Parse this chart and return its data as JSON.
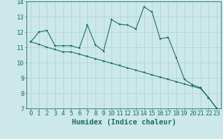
{
  "xlabel": "Humidex (Indice chaleur)",
  "bg_color": "#cce8e8",
  "line_color": "#1a6e62",
  "x_min": 0,
  "x_max": 23,
  "y_min": 7,
  "y_max": 14,
  "curve1_x": [
    0,
    1,
    2,
    3,
    4,
    5,
    6,
    7,
    8,
    9,
    10,
    11,
    12,
    13,
    14,
    15,
    16,
    17,
    18,
    19,
    20,
    21,
    22,
    23
  ],
  "curve1_y": [
    11.35,
    12.0,
    12.1,
    11.1,
    11.1,
    11.1,
    10.95,
    12.45,
    11.15,
    10.75,
    12.8,
    12.5,
    12.45,
    12.2,
    13.65,
    13.3,
    11.55,
    11.65,
    10.3,
    8.9,
    8.55,
    8.35,
    7.7,
    7.0
  ],
  "curve2_x": [
    0,
    1,
    2,
    3,
    4,
    5,
    6,
    7,
    8,
    9,
    10,
    11,
    12,
    13,
    14,
    15,
    16,
    17,
    18,
    19,
    20,
    21,
    22,
    23
  ],
  "curve2_y": [
    11.35,
    11.2,
    11.0,
    10.85,
    10.7,
    10.7,
    10.55,
    10.4,
    10.25,
    10.1,
    9.95,
    9.8,
    9.65,
    9.5,
    9.35,
    9.2,
    9.05,
    8.9,
    8.75,
    8.6,
    8.45,
    8.3,
    7.7,
    7.0
  ],
  "grid_color": "#aad0d0",
  "tick_fontsize": 6.5,
  "xlabel_fontsize": 7.5,
  "xticks": [
    0,
    1,
    2,
    3,
    4,
    5,
    6,
    7,
    8,
    9,
    10,
    11,
    12,
    13,
    14,
    15,
    16,
    17,
    18,
    19,
    20,
    21,
    22,
    23
  ],
  "yticks": [
    7,
    8,
    9,
    10,
    11,
    12,
    13,
    14
  ]
}
